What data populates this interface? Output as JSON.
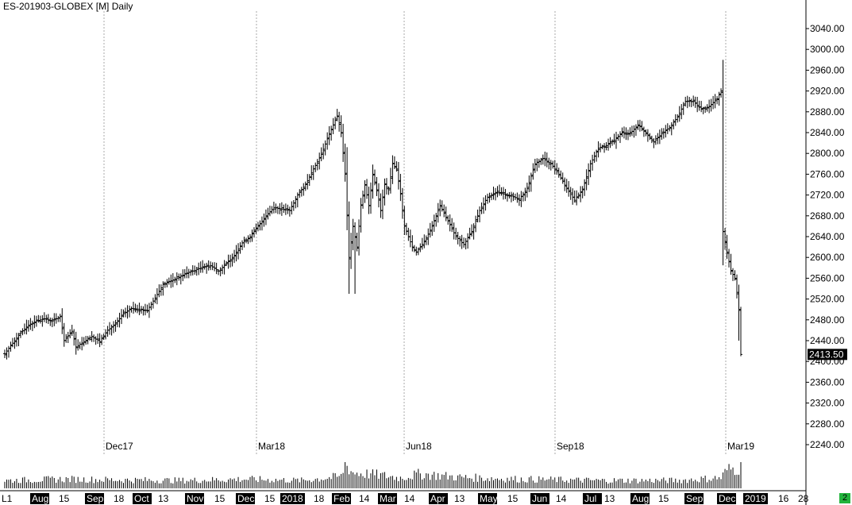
{
  "header": {
    "title": "ES-201903-GLOBEX [M] Daily"
  },
  "price_badge": {
    "value": "2413.50"
  },
  "status_badge": {
    "value": "2"
  },
  "colors": {
    "bars": "#000000",
    "badge_bg": "#000000",
    "badge_text": "#ffffff",
    "status_bg": "#22b43c",
    "grid": "#aaaaaa"
  },
  "chart_data": {
    "type": "ohlc",
    "title": "ES-201903-GLOBEX [M] Daily",
    "ylim": [
      2200,
      3060
    ],
    "y_ticks": [
      "3040.00",
      "3000.00",
      "2960.00",
      "2920.00",
      "2880.00",
      "2840.00",
      "2800.00",
      "2760.00",
      "2720.00",
      "2680.00",
      "2640.00",
      "2600.00",
      "2560.00",
      "2520.00",
      "2480.00",
      "2440.00",
      "2400.00",
      "2360.00",
      "2320.00",
      "2280.00",
      "2240.00"
    ],
    "grid": "vertical dotted at contract start markers",
    "contract_markers": [
      "Dec17",
      "Mar18",
      "Jun18",
      "Sep18",
      "Mar19"
    ],
    "x_axis_labels": [
      {
        "text": "L1",
        "highlight": false
      },
      {
        "text": "Aug",
        "highlight": true
      },
      {
        "text": "15",
        "highlight": false
      },
      {
        "text": "Sep",
        "highlight": true
      },
      {
        "text": "18",
        "highlight": false
      },
      {
        "text": "Oct",
        "highlight": true
      },
      {
        "text": "13",
        "highlight": false
      },
      {
        "text": "Nov",
        "highlight": true
      },
      {
        "text": "15",
        "highlight": false
      },
      {
        "text": "Dec",
        "highlight": true
      },
      {
        "text": "15",
        "highlight": false
      },
      {
        "text": "2018",
        "highlight": true
      },
      {
        "text": "18",
        "highlight": false
      },
      {
        "text": "Feb",
        "highlight": true
      },
      {
        "text": "14",
        "highlight": false
      },
      {
        "text": "Mar",
        "highlight": true
      },
      {
        "text": "14",
        "highlight": false
      },
      {
        "text": "Apr",
        "highlight": true
      },
      {
        "text": "13",
        "highlight": false
      },
      {
        "text": "May",
        "highlight": true
      },
      {
        "text": "15",
        "highlight": false
      },
      {
        "text": "Jun",
        "highlight": true
      },
      {
        "text": "14",
        "highlight": false
      },
      {
        "text": "Jul",
        "highlight": true
      },
      {
        "text": "13",
        "highlight": false
      },
      {
        "text": "Aug",
        "highlight": true
      },
      {
        "text": "15",
        "highlight": false
      },
      {
        "text": "Sep",
        "highlight": true
      },
      {
        "text": "Dec",
        "highlight": true
      },
      {
        "text": "2019",
        "highlight": true
      },
      {
        "text": "16",
        "highlight": false
      },
      {
        "text": "28",
        "highlight": false
      }
    ],
    "last_price": 2413.5,
    "price_path": [
      [
        0,
        2415
      ],
      [
        8,
        2455
      ],
      [
        12,
        2470
      ],
      [
        16,
        2478
      ],
      [
        20,
        2482
      ],
      [
        24,
        2478
      ],
      [
        28,
        2486
      ],
      [
        30,
        2440
      ],
      [
        34,
        2458
      ],
      [
        36,
        2428
      ],
      [
        40,
        2438
      ],
      [
        44,
        2448
      ],
      [
        48,
        2438
      ],
      [
        52,
        2460
      ],
      [
        56,
        2472
      ],
      [
        60,
        2492
      ],
      [
        64,
        2502
      ],
      [
        68,
        2500
      ],
      [
        72,
        2498
      ],
      [
        76,
        2522
      ],
      [
        80,
        2548
      ],
      [
        84,
        2555
      ],
      [
        88,
        2562
      ],
      [
        92,
        2570
      ],
      [
        96,
        2575
      ],
      [
        100,
        2582
      ],
      [
        104,
        2584
      ],
      [
        108,
        2574
      ],
      [
        112,
        2588
      ],
      [
        116,
        2604
      ],
      [
        120,
        2628
      ],
      [
        124,
        2640
      ],
      [
        128,
        2660
      ],
      [
        132,
        2680
      ],
      [
        136,
        2696
      ],
      [
        140,
        2693
      ],
      [
        144,
        2690
      ],
      [
        148,
        2720
      ],
      [
        152,
        2740
      ],
      [
        156,
        2770
      ],
      [
        160,
        2798
      ],
      [
        164,
        2838
      ],
      [
        168,
        2872
      ],
      [
        170,
        2840
      ],
      [
        172,
        2760
      ],
      [
        174,
        2600
      ],
      [
        176,
        2660
      ],
      [
        178,
        2620
      ],
      [
        180,
        2700
      ],
      [
        182,
        2740
      ],
      [
        184,
        2700
      ],
      [
        186,
        2760
      ],
      [
        188,
        2730
      ],
      [
        190,
        2690
      ],
      [
        192,
        2740
      ],
      [
        194,
        2730
      ],
      [
        196,
        2780
      ],
      [
        198,
        2770
      ],
      [
        200,
        2722
      ],
      [
        202,
        2660
      ],
      [
        204,
        2640
      ],
      [
        206,
        2620
      ],
      [
        208,
        2610
      ],
      [
        212,
        2630
      ],
      [
        216,
        2660
      ],
      [
        220,
        2700
      ],
      [
        224,
        2670
      ],
      [
        228,
        2640
      ],
      [
        232,
        2625
      ],
      [
        236,
        2650
      ],
      [
        240,
        2690
      ],
      [
        244,
        2716
      ],
      [
        248,
        2725
      ],
      [
        252,
        2722
      ],
      [
        256,
        2718
      ],
      [
        260,
        2712
      ],
      [
        264,
        2732
      ],
      [
        268,
        2780
      ],
      [
        272,
        2790
      ],
      [
        276,
        2780
      ],
      [
        280,
        2760
      ],
      [
        284,
        2732
      ],
      [
        288,
        2710
      ],
      [
        292,
        2730
      ],
      [
        296,
        2780
      ],
      [
        300,
        2810
      ],
      [
        304,
        2815
      ],
      [
        308,
        2825
      ],
      [
        312,
        2840
      ],
      [
        316,
        2838
      ],
      [
        320,
        2855
      ],
      [
        324,
        2840
      ],
      [
        328,
        2822
      ],
      [
        332,
        2838
      ],
      [
        336,
        2850
      ],
      [
        340,
        2870
      ],
      [
        344,
        2900
      ],
      [
        348,
        2900
      ],
      [
        352,
        2885
      ],
      [
        356,
        2890
      ],
      [
        360,
        2905
      ],
      [
        362,
        2920
      ],
      [
        363,
        2650
      ],
      [
        365,
        2610
      ],
      [
        367,
        2575
      ],
      [
        369,
        2560
      ],
      [
        371,
        2500
      ],
      [
        372,
        2413.5
      ]
    ],
    "volume_profile": [
      [
        0,
        0.3
      ],
      [
        30,
        0.35
      ],
      [
        60,
        0.32
      ],
      [
        90,
        0.3
      ],
      [
        120,
        0.35
      ],
      [
        150,
        0.3
      ],
      [
        170,
        0.45
      ],
      [
        172,
        0.95
      ],
      [
        176,
        0.6
      ],
      [
        190,
        0.5
      ],
      [
        200,
        0.4
      ],
      [
        210,
        0.55
      ],
      [
        230,
        0.42
      ],
      [
        260,
        0.35
      ],
      [
        300,
        0.3
      ],
      [
        340,
        0.3
      ],
      [
        362,
        0.4
      ],
      [
        365,
        0.7
      ],
      [
        372,
        0.8
      ]
    ]
  }
}
